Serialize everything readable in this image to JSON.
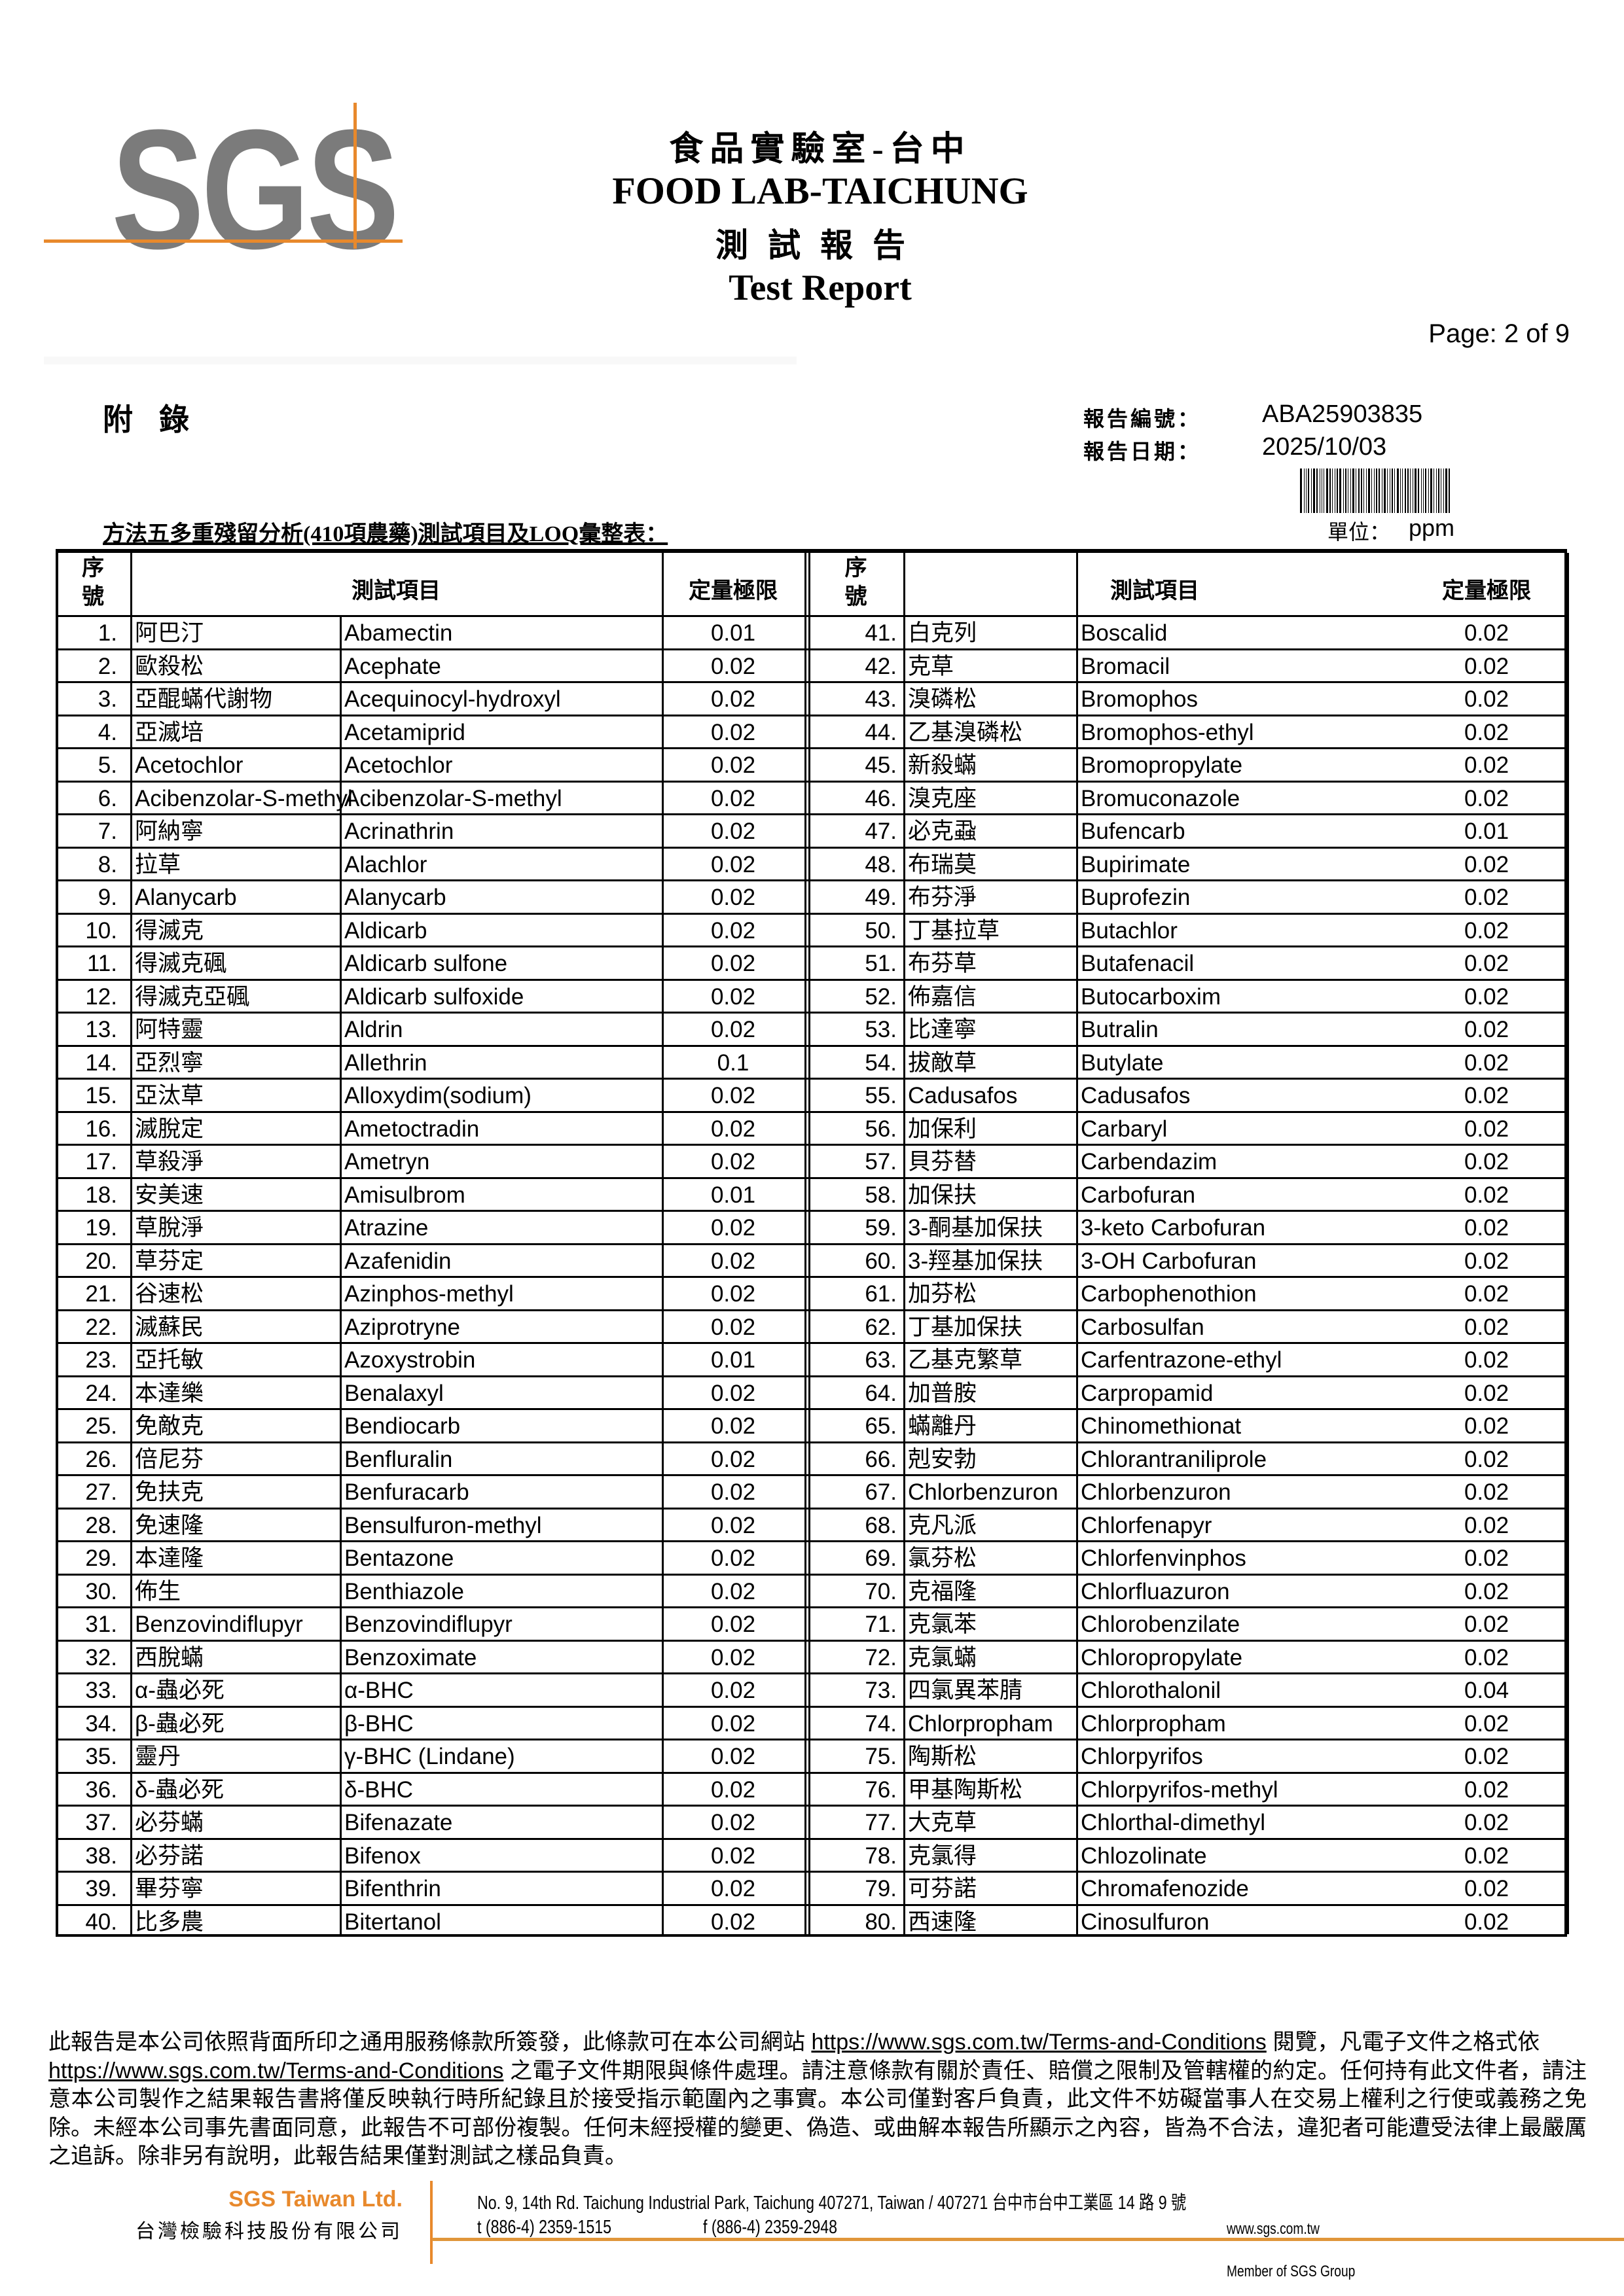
{
  "logo": {
    "text": "SGS",
    "accent_color": "#e8892c"
  },
  "header": {
    "title_zh": "食品實驗室-台中",
    "title_en": "FOOD LAB-TAICHUNG",
    "subtitle_zh": "測試報告",
    "subtitle_en": "Test Report",
    "page": "Page: 2 of 9"
  },
  "appendix": "附錄",
  "meta": {
    "report_no_label": "報告編號：",
    "report_no": "ABA25903835",
    "report_date_label": "報告日期：",
    "report_date": "2025/10/03"
  },
  "table_title": "方法五多重殘留分析(410項農藥)測試項目及LOQ彙整表：",
  "unit_label": "單位：",
  "unit_value": "ppm",
  "columns": {
    "no": "序號",
    "item": "測試項目",
    "loq": "定量極限"
  },
  "rows": [
    [
      "1.",
      "阿巴汀",
      "Abamectin",
      "0.01"
    ],
    [
      "2.",
      "歐殺松",
      "Acephate",
      "0.02"
    ],
    [
      "3.",
      "亞醌蟎代謝物",
      "Acequinocyl-hydroxyl",
      "0.02"
    ],
    [
      "4.",
      "亞滅培",
      "Acetamiprid",
      "0.02"
    ],
    [
      "5.",
      "Acetochlor",
      "Acetochlor",
      "0.02"
    ],
    [
      "6.",
      "Acibenzolar-S-methyl",
      "Acibenzolar-S-methyl",
      "0.02"
    ],
    [
      "7.",
      "阿納寧",
      "Acrinathrin",
      "0.02"
    ],
    [
      "8.",
      "拉草",
      "Alachlor",
      "0.02"
    ],
    [
      "9.",
      "Alanycarb",
      "Alanycarb",
      "0.02"
    ],
    [
      "10.",
      "得滅克",
      "Aldicarb",
      "0.02"
    ],
    [
      "11.",
      "得滅克碸",
      "Aldicarb sulfone",
      "0.02"
    ],
    [
      "12.",
      "得滅克亞碸",
      "Aldicarb sulfoxide",
      "0.02"
    ],
    [
      "13.",
      "阿特靈",
      "Aldrin",
      "0.02"
    ],
    [
      "14.",
      "亞烈寧",
      "Allethrin",
      "0.1"
    ],
    [
      "15.",
      "亞汰草",
      "Alloxydim(sodium)",
      "0.02"
    ],
    [
      "16.",
      "滅脫定",
      "Ametoctradin",
      "0.02"
    ],
    [
      "17.",
      "草殺淨",
      "Ametryn",
      "0.02"
    ],
    [
      "18.",
      "安美速",
      "Amisulbrom",
      "0.01"
    ],
    [
      "19.",
      "草脫淨",
      "Atrazine",
      "0.02"
    ],
    [
      "20.",
      "草芬定",
      "Azafenidin",
      "0.02"
    ],
    [
      "21.",
      "谷速松",
      "Azinphos-methyl",
      "0.02"
    ],
    [
      "22.",
      "滅蘇民",
      "Aziprotryne",
      "0.02"
    ],
    [
      "23.",
      "亞托敏",
      "Azoxystrobin",
      "0.01"
    ],
    [
      "24.",
      "本達樂",
      "Benalaxyl",
      "0.02"
    ],
    [
      "25.",
      "免敵克",
      "Bendiocarb",
      "0.02"
    ],
    [
      "26.",
      "倍尼芬",
      "Benfluralin",
      "0.02"
    ],
    [
      "27.",
      "免扶克",
      "Benfuracarb",
      "0.02"
    ],
    [
      "28.",
      "免速隆",
      "Bensulfuron-methyl",
      "0.02"
    ],
    [
      "29.",
      "本達隆",
      "Bentazone",
      "0.02"
    ],
    [
      "30.",
      "佈生",
      "Benthiazole",
      "0.02"
    ],
    [
      "31.",
      "Benzovindiflupyr",
      "Benzovindiflupyr",
      "0.02"
    ],
    [
      "32.",
      "西脫蟎",
      "Benzoximate",
      "0.02"
    ],
    [
      "33.",
      "α-蟲必死",
      "α-BHC",
      "0.02"
    ],
    [
      "34.",
      "β-蟲必死",
      "β-BHC",
      "0.02"
    ],
    [
      "35.",
      "靈丹",
      "γ-BHC (Lindane)",
      "0.02"
    ],
    [
      "36.",
      "δ-蟲必死",
      "δ-BHC",
      "0.02"
    ],
    [
      "37.",
      "必芬蟎",
      "Bifenazate",
      "0.02"
    ],
    [
      "38.",
      "必芬諾",
      "Bifenox",
      "0.02"
    ],
    [
      "39.",
      "畢芬寧",
      "Bifenthrin",
      "0.02"
    ],
    [
      "40.",
      "比多農",
      "Bitertanol",
      "0.02"
    ],
    [
      "41.",
      "白克列",
      "Boscalid",
      "0.02"
    ],
    [
      "42.",
      "克草",
      "Bromacil",
      "0.02"
    ],
    [
      "43.",
      "溴磷松",
      "Bromophos",
      "0.02"
    ],
    [
      "44.",
      "乙基溴磷松",
      "Bromophos-ethyl",
      "0.02"
    ],
    [
      "45.",
      "新殺蟎",
      "Bromopropylate",
      "0.02"
    ],
    [
      "46.",
      "溴克座",
      "Bromuconazole",
      "0.02"
    ],
    [
      "47.",
      "必克蝨",
      "Bufencarb",
      "0.01"
    ],
    [
      "48.",
      "布瑞莫",
      "Bupirimate",
      "0.02"
    ],
    [
      "49.",
      "布芬淨",
      "Buprofezin",
      "0.02"
    ],
    [
      "50.",
      "丁基拉草",
      "Butachlor",
      "0.02"
    ],
    [
      "51.",
      "布芬草",
      "Butafenacil",
      "0.02"
    ],
    [
      "52.",
      "佈嘉信",
      "Butocarboxim",
      "0.02"
    ],
    [
      "53.",
      "比達寧",
      "Butralin",
      "0.02"
    ],
    [
      "54.",
      "拔敵草",
      "Butylate",
      "0.02"
    ],
    [
      "55.",
      "Cadusafos",
      "Cadusafos",
      "0.02"
    ],
    [
      "56.",
      "加保利",
      "Carbaryl",
      "0.02"
    ],
    [
      "57.",
      "貝芬替",
      "Carbendazim",
      "0.02"
    ],
    [
      "58.",
      "加保扶",
      "Carbofuran",
      "0.02"
    ],
    [
      "59.",
      "3-酮基加保扶",
      "3-keto Carbofuran",
      "0.02"
    ],
    [
      "60.",
      "3-羥基加保扶",
      "3-OH Carbofuran",
      "0.02"
    ],
    [
      "61.",
      "加芬松",
      "Carbophenothion",
      "0.02"
    ],
    [
      "62.",
      "丁基加保扶",
      "Carbosulfan",
      "0.02"
    ],
    [
      "63.",
      "乙基克繁草",
      "Carfentrazone-ethyl",
      "0.02"
    ],
    [
      "64.",
      "加普胺",
      "Carpropamid",
      "0.02"
    ],
    [
      "65.",
      "蟎離丹",
      "Chinomethionat",
      "0.02"
    ],
    [
      "66.",
      "剋安勃",
      "Chlorantraniliprole",
      "0.02"
    ],
    [
      "67.",
      "Chlorbenzuron",
      "Chlorbenzuron",
      "0.02"
    ],
    [
      "68.",
      "克凡派",
      "Chlorfenapyr",
      "0.02"
    ],
    [
      "69.",
      "氯芬松",
      "Chlorfenvinphos",
      "0.02"
    ],
    [
      "70.",
      "克福隆",
      "Chlorfluazuron",
      "0.02"
    ],
    [
      "71.",
      "克氯苯",
      "Chlorobenzilate",
      "0.02"
    ],
    [
      "72.",
      "克氯蟎",
      "Chloropropylate",
      "0.02"
    ],
    [
      "73.",
      "四氯異苯腈",
      "Chlorothalonil",
      "0.04"
    ],
    [
      "74.",
      "Chlorpropham",
      "Chlorpropham",
      "0.02"
    ],
    [
      "75.",
      "陶斯松",
      "Chlorpyrifos",
      "0.02"
    ],
    [
      "76.",
      "甲基陶斯松",
      "Chlorpyrifos-methyl",
      "0.02"
    ],
    [
      "77.",
      "大克草",
      "Chlorthal-dimethyl",
      "0.02"
    ],
    [
      "78.",
      "克氯得",
      "Chlozolinate",
      "0.02"
    ],
    [
      "79.",
      "可芬諾",
      "Chromafenozide",
      "0.02"
    ],
    [
      "80.",
      "西速隆",
      "Cinosulfuron",
      "0.02"
    ]
  ],
  "footer": {
    "disclaimer_1": "此報告是本公司依照背面所印之通用服務條款所簽發，此條款可在本公司網站 ",
    "link_1": "https://www.sgs.com.tw/Terms-and-Conditions",
    "disclaimer_2": " 閱覽，凡電子文件之格式依 ",
    "link_2": "https://www.sgs.com.tw/Terms-and-Conditions",
    "disclaimer_3": " 之電子文件期限與條件處理。請注意條款有關於責任、賠償之限制及管轄權的約定。任何持有此文件者，請注意本公司製作之結果報告書將僅反映執行時所紀錄且於接受指示範圍內之事實。本公司僅對客戶負責，此文件不妨礙當事人在交易上權利之行使或義務之免除。未經本公司事先書面同意，此報告不可部份複製。任何未經授權的變更、偽造、或曲解本報告所顯示之內容，皆為不合法，違犯者可能遭受法律上最嚴厲之追訴。除非另有說明，此報告結果僅對測試之樣品負責。",
    "company_en": "SGS Taiwan Ltd.",
    "company_zh": "台灣檢驗科技股份有限公司",
    "address": "No. 9, 14th Rd. Taichung Industrial Park, Taichung 407271, Taiwan / 407271 台中市台中工業區 14 路 9 號",
    "phone": "t (886-4) 2359-1515",
    "fax": "f (886-4) 2359-2948",
    "website": "www.sgs.com.tw",
    "member": "Member of SGS Group"
  }
}
